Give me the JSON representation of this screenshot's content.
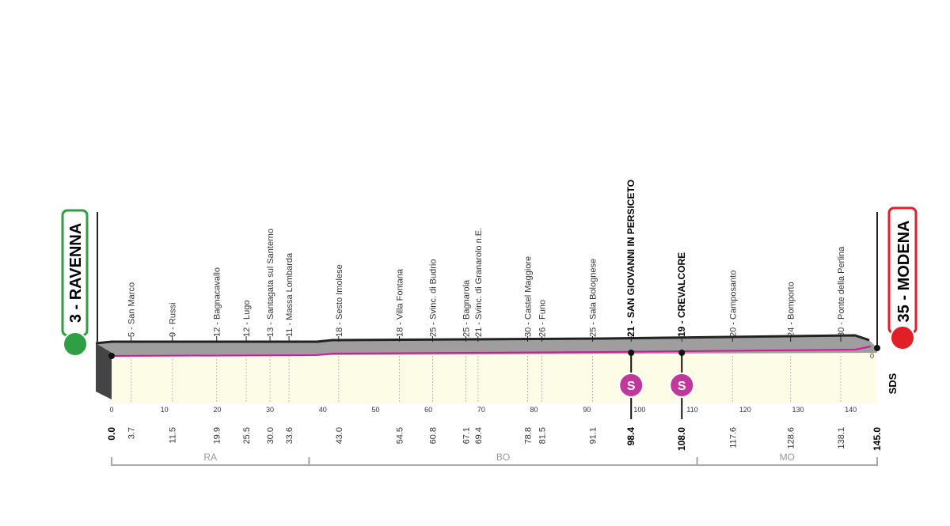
{
  "start": {
    "label": "3 - RAVENNA",
    "km": "0.0"
  },
  "finish": {
    "label": "35 - MODENA",
    "km": "145.0"
  },
  "places": [
    {
      "label": "5 - San Marco",
      "km": "3.7"
    },
    {
      "label": "9 - Russi",
      "km": "11.5"
    },
    {
      "label": "12 - Bagnacavallo",
      "km": "19.9"
    },
    {
      "label": "12 - Lugo",
      "km": "25.5"
    },
    {
      "label": "13 - Santagata sul Santerno",
      "km": "30.0"
    },
    {
      "label": "11 - Massa Lombarda",
      "km": "33.6"
    },
    {
      "label": "18 - Sesto Imolese",
      "km": "43.0"
    },
    {
      "label": "18 - Villa Fontana",
      "km": "54.5"
    },
    {
      "label": "25 - Svinc. di Budrio",
      "km": "60.8"
    },
    {
      "label": "25 - Bagnarola",
      "km": "67.1"
    },
    {
      "label": "21 - Svinc. di Granarolo n.E.",
      "km": "69.4"
    },
    {
      "label": "30 - Castel Maggiore",
      "km": "78.8"
    },
    {
      "label": "26 - Funo",
      "km": "81.5"
    },
    {
      "label": "25 - Sala Bolognese",
      "km": "91.1"
    },
    {
      "label": "21 - SAN GIOVANNI IN PERSICETO",
      "km": "98.4"
    },
    {
      "label": "19 - CREVALCORE",
      "km": "108.0"
    },
    {
      "label": "20 - Camposanto",
      "km": "117.6"
    },
    {
      "label": "24 - Bomporto",
      "km": "128.6"
    },
    {
      "label": "30 - Ponte della Perlina",
      "km": "138.1"
    }
  ],
  "sprints": [
    {
      "km": "98.4",
      "icon": "S"
    },
    {
      "km": "108.0",
      "icon": "S"
    }
  ],
  "axis_ticks": [
    "0",
    "10",
    "20",
    "30",
    "40",
    "50",
    "60",
    "70",
    "80",
    "90",
    "100",
    "110",
    "120",
    "130",
    "140"
  ],
  "altitude_zero": "0",
  "provinces": [
    {
      "label": "RA",
      "from": "0.0",
      "to": "37.4"
    },
    {
      "label": "BO",
      "from": "37.4",
      "to": "110.9"
    },
    {
      "label": "MO",
      "from": "110.9",
      "to": "145.0"
    }
  ],
  "logo": "SDS"
}
